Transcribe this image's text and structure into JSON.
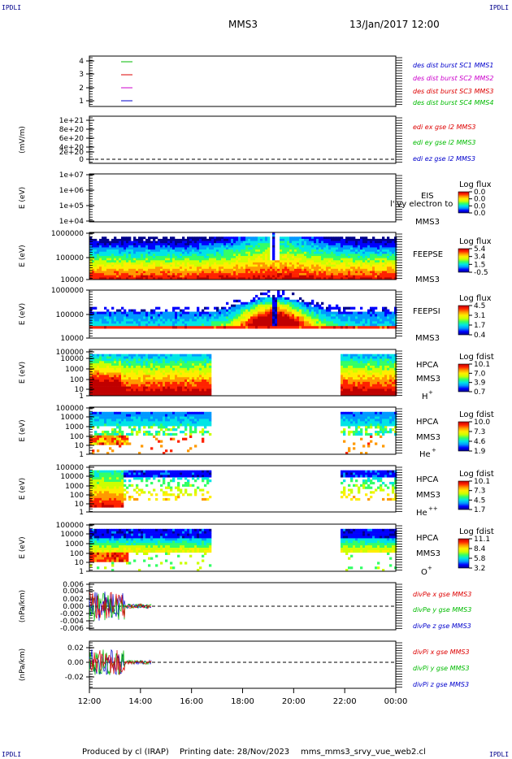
{
  "header": {
    "corner_label": "IPDLI",
    "spacecraft": "MMS3",
    "datetime": "13/Jan/2017 12:00"
  },
  "footer": {
    "produced_by": "Produced by cl (IRAP)",
    "printing_date": "Printing date: 28/Nov/2023",
    "filename": "mms_mms3_srvy_vue_web2.cl"
  },
  "colors": {
    "blue": "#0000cc",
    "magenta": "#cc00cc",
    "red": "#dd0000",
    "green": "#00bb00",
    "colorbar": [
      "#00008b",
      "#0000ff",
      "#0099ff",
      "#00e5e5",
      "#33ff66",
      "#ccff00",
      "#ffee00",
      "#ff9900",
      "#ff2200",
      "#c00000"
    ]
  },
  "chart_data": [
    {
      "type": "line",
      "panel": "burst-flags",
      "yticks": [
        "4",
        "3",
        "2",
        "1"
      ],
      "legend": [
        {
          "text": "des dist burst SC1 MMS1",
          "color": "#0000cc"
        },
        {
          "text": "des dist burst SC2 MMS2",
          "color": "#cc00cc"
        },
        {
          "text": "des dist burst SC3 MMS3",
          "color": "#dd0000"
        },
        {
          "text": "des dist burst SC4 MMS4",
          "color": "#00bb00"
        }
      ]
    },
    {
      "type": "line",
      "panel": "edi-e",
      "ylabel": "(mV/m)",
      "yticks": [
        "1e+21",
        "8e+20",
        "6e+20",
        "4e+20",
        "2e+20",
        "0"
      ],
      "legend": [
        {
          "text": "edi ex gse l2 MMS3",
          "color": "#dd0000"
        },
        {
          "text": "edi ey gse l2 MMS3",
          "color": "#00bb00"
        },
        {
          "text": "edi ez gse l2 MMS3",
          "color": "#0000cc"
        }
      ]
    },
    {
      "type": "heatmap",
      "panel": "eis",
      "ylabel": "E (eV)",
      "yticks": [
        "1e+07",
        "1e+06",
        "1e+05",
        "1e+04"
      ],
      "instrument": [
        "EIS"
      ],
      "extra_label": "l'ivy electron to",
      "spacecraft": "MMS3",
      "colorbar_title": "Log flux",
      "colorbar_ticks": [
        "0.0",
        "0.0",
        "0.0",
        "0.0"
      ]
    },
    {
      "type": "heatmap",
      "panel": "feepse",
      "ylabel": "E (eV)",
      "yticks": [
        "1000000",
        "100000",
        "10000"
      ],
      "instrument": [
        "FEEPSE"
      ],
      "spacecraft": "MMS3",
      "colorbar_title": "Log flux",
      "colorbar_ticks": [
        "5.4",
        "3.4",
        "1.5",
        "-0.5"
      ]
    },
    {
      "type": "heatmap",
      "panel": "feepsi",
      "ylabel": "E (eV)",
      "yticks": [
        "1000000",
        "100000",
        "10000"
      ],
      "instrument": [
        "FEEPSI"
      ],
      "spacecraft": "MMS3",
      "colorbar_title": "Log flux",
      "colorbar_ticks": [
        "4.5",
        "3.1",
        "1.7",
        "0.4"
      ]
    },
    {
      "type": "heatmap",
      "panel": "hpca-h",
      "ylabel": "E (eV)",
      "yticks": [
        "100000",
        "10000",
        "1000",
        "100",
        "10",
        "1"
      ],
      "instrument": [
        "HPCA",
        "MMS3"
      ],
      "species": "H",
      "charge": "+",
      "colorbar_title": "Log fdist",
      "colorbar_ticks": [
        "10.1",
        "7.0",
        "3.9",
        "0.7"
      ]
    },
    {
      "type": "heatmap",
      "panel": "hpca-he",
      "ylabel": "E (eV)",
      "yticks": [
        "100000",
        "10000",
        "1000",
        "100",
        "10",
        "1"
      ],
      "instrument": [
        "HPCA",
        "MMS3"
      ],
      "species": "He",
      "charge": "+",
      "colorbar_title": "Log fdist",
      "colorbar_ticks": [
        "10.0",
        "7.3",
        "4.6",
        "1.9"
      ]
    },
    {
      "type": "heatmap",
      "panel": "hpca-he2",
      "ylabel": "E (eV)",
      "yticks": [
        "100000",
        "10000",
        "1000",
        "100",
        "10",
        "1"
      ],
      "instrument": [
        "HPCA",
        "MMS3"
      ],
      "species": "He",
      "charge": "++",
      "colorbar_title": "Log fdist",
      "colorbar_ticks": [
        "10.1",
        "7.3",
        "4.5",
        "1.7"
      ]
    },
    {
      "type": "heatmap",
      "panel": "hpca-o",
      "ylabel": "E (eV)",
      "yticks": [
        "100000",
        "10000",
        "1000",
        "100",
        "10",
        "1"
      ],
      "instrument": [
        "HPCA",
        "MMS3"
      ],
      "species": "O",
      "charge": "+",
      "colorbar_title": "Log fdist",
      "colorbar_ticks": [
        "11.1",
        "8.4",
        "5.8",
        "3.2"
      ]
    },
    {
      "type": "line",
      "panel": "divpe",
      "ylabel": "(nPa/km)",
      "yticks": [
        "0.006",
        "0.004",
        "0.002",
        "0.000",
        "-0.002",
        "-0.004",
        "-0.006"
      ],
      "ylim": [
        -0.007,
        0.007
      ],
      "legend": [
        {
          "text": "divPe x gse MMS3",
          "color": "#dd0000"
        },
        {
          "text": "divPe y gse MMS3",
          "color": "#00bb00"
        },
        {
          "text": "divPe z gse MMS3",
          "color": "#0000cc"
        }
      ]
    },
    {
      "type": "line",
      "panel": "divpi",
      "ylabel": "(nPa/km)",
      "yticks": [
        "0.02",
        "0.00",
        "-0.02"
      ],
      "ylim": [
        -0.035,
        0.03
      ],
      "legend": [
        {
          "text": "divPi x gse MMS3",
          "color": "#dd0000"
        },
        {
          "text": "divPi y gse MMS3",
          "color": "#00bb00"
        },
        {
          "text": "divPi z gse MMS3",
          "color": "#0000cc"
        }
      ]
    }
  ],
  "xaxis": {
    "ticks": [
      "12:00",
      "14:00",
      "16:00",
      "18:00",
      "20:00",
      "22:00",
      "00:00"
    ],
    "range_hours": [
      12,
      24
    ]
  }
}
